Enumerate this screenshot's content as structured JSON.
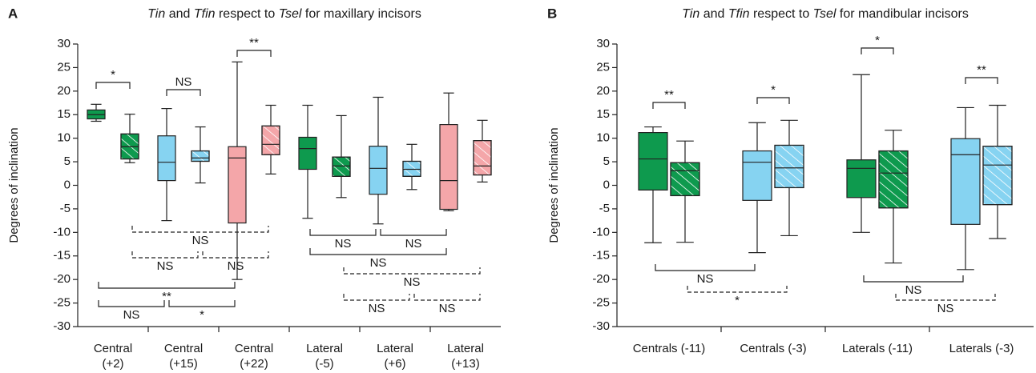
{
  "chart_data": [
    {
      "type": "box",
      "panel_label": "A",
      "title": [
        {
          "text": "Tin",
          "italic": true
        },
        {
          "text": " and ",
          "italic": false
        },
        {
          "text": "Tfin",
          "italic": true
        },
        {
          "text": " respect to ",
          "italic": false
        },
        {
          "text": "Tsel",
          "italic": true
        },
        {
          "text": " for maxillary incisors",
          "italic": false
        }
      ],
      "ylabel": "Degrees of inclination",
      "ylim": [
        -30,
        30
      ],
      "yticks": [
        -30,
        -25,
        -20,
        -15,
        -10,
        -5,
        0,
        5,
        10,
        15,
        20,
        25,
        30
      ],
      "categories": [
        [
          "Central",
          "(+2)"
        ],
        [
          "Central",
          "(+15)"
        ],
        [
          "Central",
          "(+22)"
        ],
        [
          "Lateral",
          "(-5)"
        ],
        [
          "Lateral",
          "(+6)"
        ],
        [
          "Lateral",
          "(+13)"
        ]
      ],
      "category_colors": [
        "#0e9a4e",
        "#86d3f1",
        "#f4a6a9",
        "#0e9a4e",
        "#86d3f1",
        "#f4a6a9"
      ],
      "series": [
        {
          "hatch": false,
          "boxes": [
            {
              "min": 13.6,
              "q1": 14.1,
              "median": 15,
              "q3": 16,
              "max": 17.2
            },
            {
              "min": -7.5,
              "q1": 1.0,
              "median": 4.9,
              "q3": 10.5,
              "max": 16.3
            },
            {
              "min": -20,
              "q1": -8,
              "median": 5.8,
              "q3": 8.2,
              "max": 26.2
            },
            {
              "min": -7,
              "q1": 3.4,
              "median": 7.8,
              "q3": 10.2,
              "max": 17
            },
            {
              "min": -8.2,
              "q1": -1.9,
              "median": 3.6,
              "q3": 8.3,
              "max": 18.7
            },
            {
              "min": -5.4,
              "q1": -5.1,
              "median": 1.0,
              "q3": 12.9,
              "max": 19.6
            }
          ]
        },
        {
          "hatch": true,
          "boxes": [
            {
              "min": 4.8,
              "q1": 5.6,
              "median": 8.2,
              "q3": 10.9,
              "max": 15.1
            },
            {
              "min": 0.5,
              "q1": 5.1,
              "median": 5.8,
              "q3": 7.3,
              "max": 12.4
            },
            {
              "min": 2.4,
              "q1": 6.5,
              "median": 8.7,
              "q3": 12.6,
              "max": 17
            },
            {
              "min": -2.6,
              "q1": 1.9,
              "median": 4.1,
              "q3": 6,
              "max": 14.8
            },
            {
              "min": -0.9,
              "q1": 1.9,
              "median": 3.4,
              "q3": 5.1,
              "max": 8.7
            },
            {
              "min": 0.7,
              "q1": 2.2,
              "median": 4.1,
              "q3": 9.5,
              "max": 13.8
            }
          ]
        }
      ],
      "comparisons": [
        {
          "from": [
            0,
            0
          ],
          "to": [
            0,
            1
          ],
          "label": "*",
          "side": "above",
          "dashed": false
        },
        {
          "from": [
            1,
            0
          ],
          "to": [
            1,
            1
          ],
          "label": "NS",
          "side": "above",
          "dashed": false
        },
        {
          "from": [
            2,
            0
          ],
          "to": [
            2,
            1
          ],
          "label": "**",
          "side": "above",
          "dashed": false
        },
        {
          "from": [
            0,
            1
          ],
          "to": [
            2,
            1
          ],
          "label": "NS",
          "side": "below",
          "dashed": true
        },
        {
          "from": [
            0,
            1
          ],
          "to": [
            1,
            1
          ],
          "label": "NS",
          "side": "below",
          "dashed": true
        },
        {
          "from": [
            1,
            1
          ],
          "to": [
            2,
            1
          ],
          "label": "NS",
          "side": "below",
          "dashed": true
        },
        {
          "from": [
            0,
            0
          ],
          "to": [
            2,
            0
          ],
          "label": "**",
          "side": "below",
          "dashed": false
        },
        {
          "from": [
            0,
            0
          ],
          "to": [
            1,
            0
          ],
          "label": "NS",
          "side": "below",
          "dashed": false
        },
        {
          "from": [
            1,
            0
          ],
          "to": [
            2,
            0
          ],
          "label": "*",
          "side": "below",
          "dashed": false
        },
        {
          "from": [
            3,
            0
          ],
          "to": [
            4,
            0
          ],
          "label": "NS",
          "side": "below",
          "dashed": false
        },
        {
          "from": [
            4,
            0
          ],
          "to": [
            5,
            0
          ],
          "label": "NS",
          "side": "below",
          "dashed": false
        },
        {
          "from": [
            3,
            0
          ],
          "to": [
            5,
            0
          ],
          "label": "NS",
          "side": "below",
          "dashed": false
        },
        {
          "from": [
            3,
            1
          ],
          "to": [
            5,
            1
          ],
          "label": "NS",
          "side": "below",
          "dashed": true
        },
        {
          "from": [
            3,
            1
          ],
          "to": [
            4,
            1
          ],
          "label": "NS",
          "side": "below",
          "dashed": true
        },
        {
          "from": [
            4,
            1
          ],
          "to": [
            5,
            1
          ],
          "label": "NS",
          "side": "below",
          "dashed": true
        }
      ]
    },
    {
      "type": "box",
      "panel_label": "B",
      "title": [
        {
          "text": "Tin",
          "italic": true
        },
        {
          "text": " and ",
          "italic": false
        },
        {
          "text": "Tfin",
          "italic": true
        },
        {
          "text": " respect to ",
          "italic": false
        },
        {
          "text": "Tsel",
          "italic": true
        },
        {
          "text": " for mandibular incisors",
          "italic": false
        }
      ],
      "ylabel": "Degrees of inclination",
      "ylim": [
        -30,
        30
      ],
      "yticks": [
        -30,
        -25,
        -20,
        -15,
        -10,
        -5,
        0,
        5,
        10,
        15,
        20,
        25,
        30
      ],
      "categories": [
        [
          "Centrals (-11)"
        ],
        [
          "Centrals (-3)"
        ],
        [
          "Laterals (-11)"
        ],
        [
          "Laterals (-3)"
        ]
      ],
      "category_colors": [
        "#0e9a4e",
        "#86d3f1",
        "#0e9a4e",
        "#86d3f1"
      ],
      "series": [
        {
          "hatch": false,
          "boxes": [
            {
              "min": -12.2,
              "q1": -1,
              "median": 5.6,
              "q3": 11.2,
              "max": 12.4
            },
            {
              "min": -14.3,
              "q1": -3.2,
              "median": 4.9,
              "q3": 7.3,
              "max": 13.3
            },
            {
              "min": -10,
              "q1": -2.6,
              "median": 3.6,
              "q3": 5.4,
              "max": 23.5
            },
            {
              "min": -17.9,
              "q1": -8.3,
              "median": 6.5,
              "q3": 9.9,
              "max": 16.5
            }
          ]
        },
        {
          "hatch": true,
          "boxes": [
            {
              "min": -12.1,
              "q1": -2.2,
              "median": 3.1,
              "q3": 4.8,
              "max": 9.4
            },
            {
              "min": -10.7,
              "q1": -0.5,
              "median": 3.7,
              "q3": 8.5,
              "max": 13.8
            },
            {
              "min": -16.5,
              "q1": -4.8,
              "median": 2.6,
              "q3": 7.3,
              "max": 11.7
            },
            {
              "min": -11.3,
              "q1": -4.1,
              "median": 4.3,
              "q3": 8.3,
              "max": 17
            }
          ]
        }
      ],
      "comparisons": [
        {
          "from": [
            0,
            0
          ],
          "to": [
            0,
            1
          ],
          "label": "**",
          "side": "above",
          "dashed": false
        },
        {
          "from": [
            1,
            0
          ],
          "to": [
            1,
            1
          ],
          "label": "*",
          "side": "above",
          "dashed": false
        },
        {
          "from": [
            2,
            0
          ],
          "to": [
            2,
            1
          ],
          "label": "*",
          "side": "above",
          "dashed": false
        },
        {
          "from": [
            3,
            0
          ],
          "to": [
            3,
            1
          ],
          "label": "**",
          "side": "above",
          "dashed": false
        },
        {
          "from": [
            0,
            0
          ],
          "to": [
            1,
            0
          ],
          "label": "NS",
          "side": "below",
          "dashed": false
        },
        {
          "from": [
            0,
            1
          ],
          "to": [
            1,
            1
          ],
          "label": "*",
          "side": "below",
          "dashed": true
        },
        {
          "from": [
            2,
            0
          ],
          "to": [
            3,
            0
          ],
          "label": "NS",
          "side": "below",
          "dashed": false
        },
        {
          "from": [
            2,
            1
          ],
          "to": [
            3,
            1
          ],
          "label": "NS",
          "side": "below",
          "dashed": true
        }
      ]
    }
  ]
}
